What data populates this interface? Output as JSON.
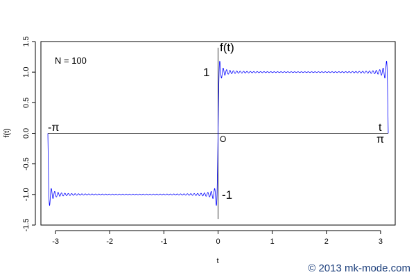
{
  "chart_data": {
    "type": "line",
    "title": "",
    "xlabel": "t",
    "ylabel": "f(t)",
    "xlim": [
      -3.27,
      3.27
    ],
    "ylim": [
      -1.5,
      1.5
    ],
    "x_ticks": [
      -3,
      -2,
      -1,
      0,
      1,
      2,
      3
    ],
    "y_ticks": [
      -1.5,
      -1.0,
      -0.5,
      0.0,
      0.5,
      1.0,
      1.5
    ],
    "x_tick_labels": [
      "-3",
      "-2",
      "-1",
      "0",
      "1",
      "2",
      "3"
    ],
    "y_tick_labels": [
      "-1.5",
      "-1.0",
      "-0.5",
      "0.0",
      "0.5",
      "1.0",
      "1.5"
    ],
    "grid": false,
    "series": [
      {
        "function": "Fourier partial sum of square wave, f(t) = 1 on (0, pi), -1 on (-pi, 0)",
        "terms": 100,
        "color": "#0000ff"
      }
    ],
    "annotations": {
      "n_label": "N = 100",
      "ft_label": "f(t)",
      "one_label": "1",
      "minus_one_label": "-1",
      "minus_pi_label": "-π",
      "pi_label": "π",
      "t_label": "t",
      "origin_label": "O"
    },
    "copyright": "© 2013 mk-mode.com"
  }
}
